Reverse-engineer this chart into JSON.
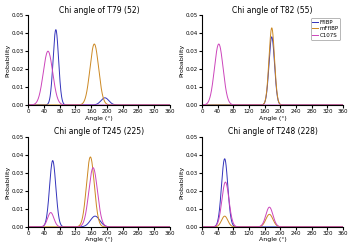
{
  "subplots": [
    {
      "title": "Chi angle of T79 (52)",
      "curves": [
        {
          "label": "FfIBP",
          "color": "#3333bb",
          "peaks": [
            {
              "mu": 70,
              "sigma": 7,
              "amp": 0.042
            },
            {
              "mu": 195,
              "sigma": 10,
              "amp": 0.004
            }
          ]
        },
        {
          "label": "mFfIBP",
          "color": "#cc8822",
          "peaks": [
            {
              "mu": 168,
              "sigma": 11,
              "amp": 0.034
            }
          ]
        },
        {
          "label": "C107S",
          "color": "#cc44bb",
          "peaks": [
            {
              "mu": 50,
              "sigma": 12,
              "amp": 0.03
            }
          ]
        }
      ]
    },
    {
      "title": "Chi angle of T82 (55)",
      "curves": [
        {
          "label": "FfIBP",
          "color": "#3333bb",
          "peaks": [
            {
              "mu": 178,
              "sigma": 7,
              "amp": 0.038
            }
          ]
        },
        {
          "label": "mFfIBP",
          "color": "#cc8822",
          "peaks": [
            {
              "mu": 178,
              "sigma": 7,
              "amp": 0.043
            }
          ]
        },
        {
          "label": "C107S",
          "color": "#cc44bb",
          "peaks": [
            {
              "mu": 43,
              "sigma": 11,
              "amp": 0.034
            }
          ]
        }
      ]
    },
    {
      "title": "Chi angle of T245 (225)",
      "curves": [
        {
          "label": "FfIBP",
          "color": "#3333bb",
          "peaks": [
            {
              "mu": 62,
              "sigma": 8,
              "amp": 0.037
            },
            {
              "mu": 170,
              "sigma": 12,
              "amp": 0.006
            }
          ]
        },
        {
          "label": "mFfIBP",
          "color": "#cc8822",
          "peaks": [
            {
              "mu": 158,
              "sigma": 10,
              "amp": 0.039
            }
          ]
        },
        {
          "label": "C107S",
          "color": "#cc44bb",
          "peaks": [
            {
              "mu": 165,
              "sigma": 11,
              "amp": 0.033
            },
            {
              "mu": 57,
              "sigma": 8,
              "amp": 0.008
            }
          ]
        }
      ]
    },
    {
      "title": "Chi angle of T248 (228)",
      "curves": [
        {
          "label": "FfIBP",
          "color": "#3333bb",
          "peaks": [
            {
              "mu": 58,
              "sigma": 8,
              "amp": 0.038
            }
          ]
        },
        {
          "label": "mFfIBP",
          "color": "#cc8822",
          "peaks": [
            {
              "mu": 58,
              "sigma": 8,
              "amp": 0.006
            },
            {
              "mu": 172,
              "sigma": 9,
              "amp": 0.007
            }
          ]
        },
        {
          "label": "C107S",
          "color": "#cc44bb",
          "peaks": [
            {
              "mu": 60,
              "sigma": 9,
              "amp": 0.025
            },
            {
              "mu": 172,
              "sigma": 9,
              "amp": 0.011
            }
          ]
        }
      ]
    }
  ],
  "legend_labels": [
    "FfIBP",
    "mFfIBP",
    "C107S"
  ],
  "legend_colors": [
    "#3333bb",
    "#cc8822",
    "#cc44bb"
  ],
  "xlim": [
    0,
    360
  ],
  "ylim": [
    0,
    0.05
  ],
  "xlabel": "Angle (°)",
  "ylabel": "Probability",
  "yticks": [
    0.0,
    0.01,
    0.02,
    0.03,
    0.04,
    0.05
  ],
  "xticks": [
    0,
    40,
    80,
    120,
    160,
    200,
    240,
    280,
    320,
    360
  ]
}
